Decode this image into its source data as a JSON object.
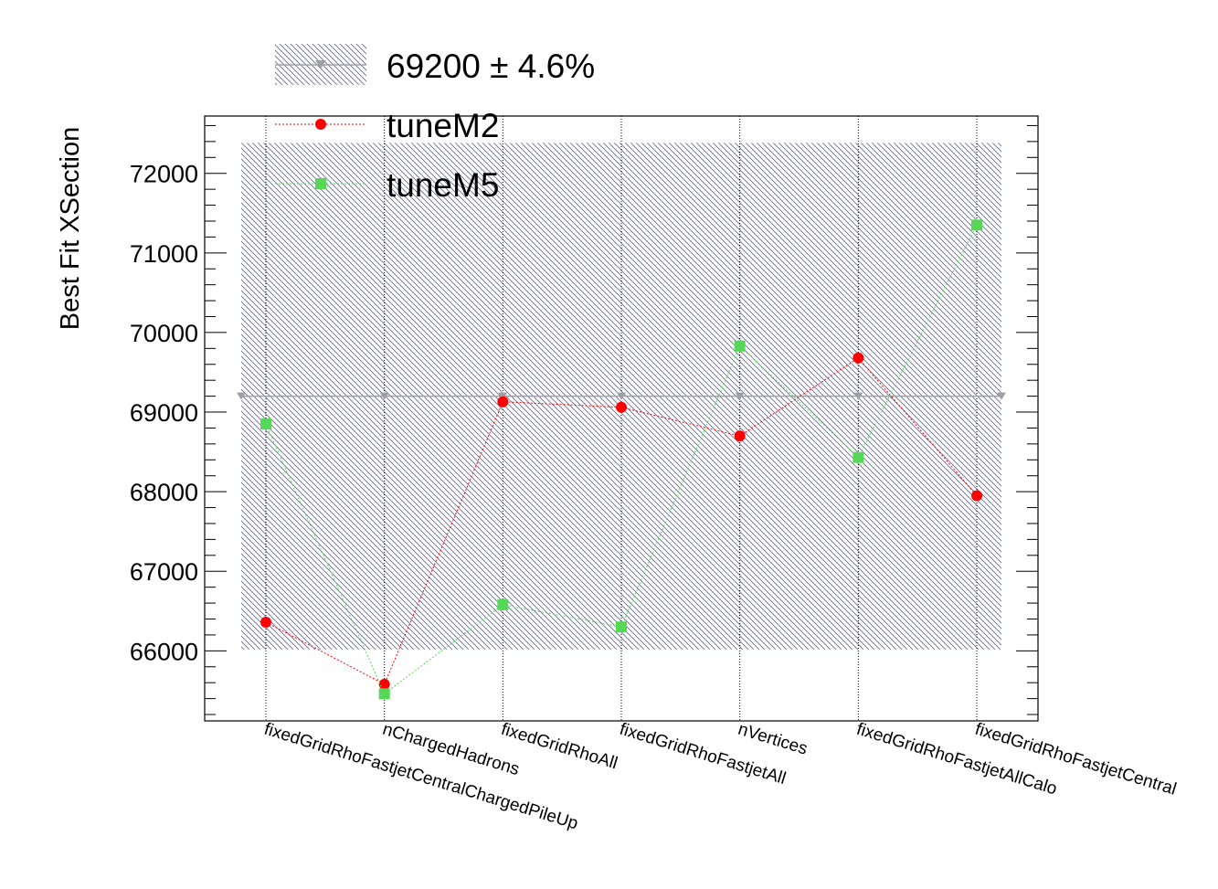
{
  "chart_data": {
    "type": "line",
    "ylabel": "Best Fit XSection",
    "xlabel": "",
    "categories": [
      "fixedGridRhoFastjetCentralChargedPileUp",
      "nChargedHadrons",
      "fixedGridRhoAll",
      "fixedGridRhoFastjetAll",
      "nVertices",
      "fixedGridRhoFastjetAllCalo",
      "fixedGridRhoFastjetCentral"
    ],
    "ylim": [
      65120,
      72720
    ],
    "yticks": [
      "66000",
      "67000",
      "68000",
      "69000",
      "70000",
      "71000",
      "72000"
    ],
    "reference": {
      "label": "69200 ± 4.6%",
      "value": 69200,
      "band": [
        66017,
        72383
      ],
      "color": "#a0a0a0",
      "band_color": "#6e6e8a"
    },
    "series": [
      {
        "name": "tuneM2",
        "color": "#ff0000",
        "marker": "circle",
        "values": [
          66360,
          65580,
          69130,
          69060,
          68700,
          69680,
          67950
        ]
      },
      {
        "name": "tuneM5",
        "color": "#55d855",
        "marker": "square",
        "values": [
          68850,
          65460,
          66580,
          66300,
          69830,
          68430,
          71350
        ]
      }
    ],
    "grid": "vertical dotted at each category",
    "legend": "top-left"
  }
}
